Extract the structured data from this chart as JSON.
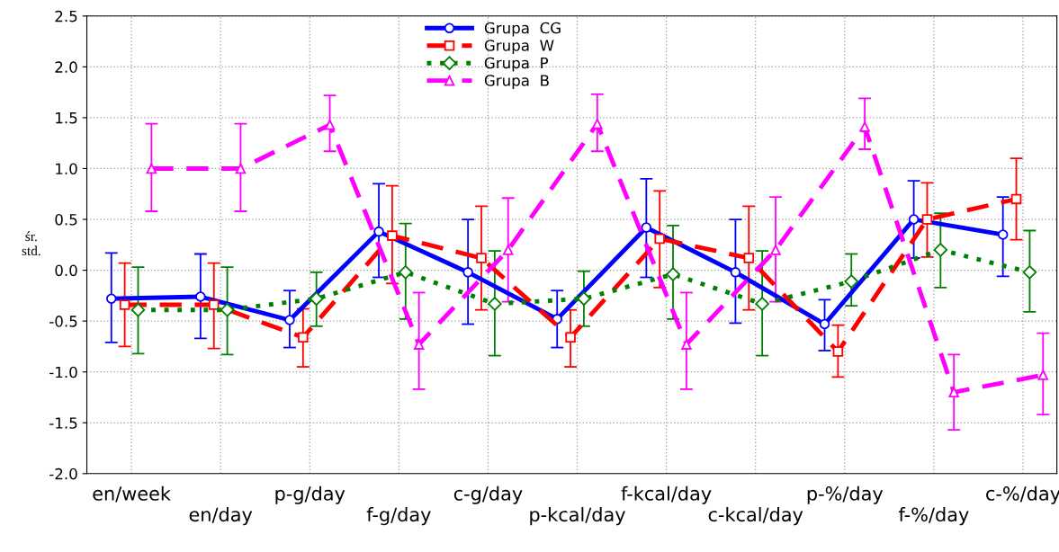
{
  "chart_data": {
    "type": "line",
    "categories": [
      "en/week",
      "en/day",
      "p-g/day",
      "f-g/day",
      "c-g/day",
      "p-kcal/day",
      "f-kcal/day",
      "c-kcal/day",
      "p-%/day",
      "f-%/day",
      "c-%/day"
    ],
    "ylabel": "śr.\nstd.",
    "ylim": [
      -2.0,
      2.5
    ],
    "yticks": [
      {
        "value": -2.0,
        "label": "-2.0"
      },
      {
        "value": -1.5,
        "label": "-1.5"
      },
      {
        "value": -1.0,
        "label": "-1.0"
      },
      {
        "value": -0.5,
        "label": "-0.5"
      },
      {
        "value": 0.0,
        "label": "0.0"
      },
      {
        "value": 0.5,
        "label": "0.5"
      },
      {
        "value": 1.0,
        "label": "1.0"
      },
      {
        "value": 1.5,
        "label": "1.5"
      },
      {
        "value": 2.0,
        "label": "2.0"
      },
      {
        "value": 2.5,
        "label": "2.5"
      }
    ],
    "grid": true,
    "legend": "top",
    "series": [
      {
        "name": "Grupa  CG",
        "color": "#0000ff",
        "marker": "circle",
        "line_style": "solid",
        "values": [
          -0.28,
          -0.26,
          -0.49,
          0.38,
          -0.02,
          -0.48,
          0.42,
          -0.02,
          -0.53,
          0.5,
          0.35
        ],
        "errors": [
          [
            -0.71,
            0.17
          ],
          [
            -0.67,
            0.16
          ],
          [
            -0.76,
            -0.2
          ],
          [
            -0.07,
            0.85
          ],
          [
            -0.53,
            0.5
          ],
          [
            -0.76,
            -0.2
          ],
          [
            -0.07,
            0.9
          ],
          [
            -0.52,
            0.5
          ],
          [
            -0.79,
            -0.29
          ],
          [
            0.12,
            0.88
          ],
          [
            -0.06,
            0.72
          ]
        ]
      },
      {
        "name": "Grupa  W",
        "color": "#ff0000",
        "marker": "square",
        "line_style": "dashed",
        "values": [
          -0.34,
          -0.34,
          -0.66,
          0.34,
          0.12,
          -0.66,
          0.31,
          0.12,
          -0.8,
          0.5,
          0.7
        ],
        "errors": [
          [
            -0.75,
            0.07
          ],
          [
            -0.77,
            0.07
          ],
          [
            -0.95,
            -0.38
          ],
          [
            -0.13,
            0.83
          ],
          [
            -0.39,
            0.63
          ],
          [
            -0.95,
            -0.39
          ],
          [
            -0.17,
            0.78
          ],
          [
            -0.39,
            0.63
          ],
          [
            -1.05,
            -0.54
          ],
          [
            0.13,
            0.86
          ],
          [
            0.3,
            1.1
          ]
        ]
      },
      {
        "name": "Grupa  P",
        "color": "#008000",
        "marker": "diamond",
        "line_style": "dotted",
        "values": [
          -0.39,
          -0.39,
          -0.28,
          -0.02,
          -0.33,
          -0.28,
          -0.04,
          -0.33,
          -0.11,
          0.2,
          -0.02
        ],
        "errors": [
          [
            -0.82,
            0.03
          ],
          [
            -0.83,
            0.03
          ],
          [
            -0.55,
            -0.02
          ],
          [
            -0.48,
            0.46
          ],
          [
            -0.84,
            0.19
          ],
          [
            -0.55,
            -0.01
          ],
          [
            -0.48,
            0.44
          ],
          [
            -0.84,
            0.19
          ],
          [
            -0.35,
            0.16
          ],
          [
            -0.17,
            0.56
          ],
          [
            -0.41,
            0.39
          ]
        ]
      },
      {
        "name": "Grupa  B",
        "color": "#ff00ff",
        "marker": "triangle",
        "line_style": "dashed",
        "values": [
          1.0,
          1.0,
          1.43,
          -0.73,
          0.2,
          1.44,
          -0.73,
          0.2,
          1.41,
          -1.2,
          -1.03
        ],
        "errors": [
          [
            0.58,
            1.44
          ],
          [
            0.58,
            1.44
          ],
          [
            1.17,
            1.72
          ],
          [
            -1.17,
            -0.22
          ],
          [
            -0.31,
            0.71
          ],
          [
            1.17,
            1.73
          ],
          [
            -1.17,
            -0.22
          ],
          [
            -0.31,
            0.72
          ],
          [
            1.19,
            1.69
          ],
          [
            -1.57,
            -0.83
          ],
          [
            -1.42,
            -0.62
          ]
        ]
      }
    ]
  }
}
